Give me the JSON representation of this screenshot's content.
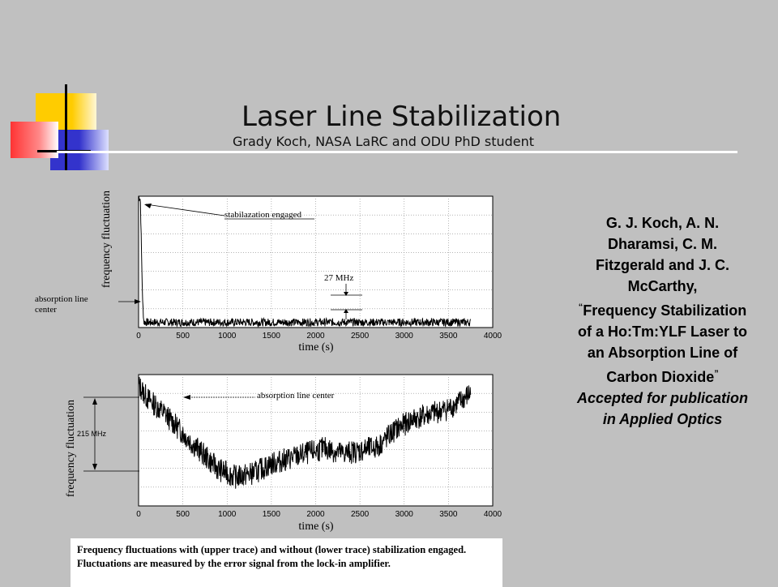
{
  "slide": {
    "title": "Laser Line Stabilization",
    "subtitle": "Grady Koch, NASA LaRC and ODU PhD student",
    "colors": {
      "background": "#c0c0c0",
      "yellow": "#ffcc00",
      "red": "#ff3333",
      "blue": "#3333cc"
    }
  },
  "reference": {
    "authors": "G. J. Koch, A. N. Dharamsi, C. M. Fitzgerald and J. C. McCarthy,",
    "quote_open": "“",
    "paper_title": "Frequency Stabilization of a Ho:Tm:YLF Laser to an Absorption Line of Carbon Dioxide",
    "quote_close": "”",
    "status": "Accepted for publication in Applied Optics"
  },
  "caption": "Frequency fluctuations with (upper trace) and without (lower trace) stabilization engaged. Fluctuations are measured by the error signal from the lock-in amplifier.",
  "chart_data": [
    {
      "type": "line",
      "xlabel": "time (s)",
      "ylabel": "frequency fluctuation",
      "xlim": [
        0,
        4000
      ],
      "xticks": [
        "0",
        "500",
        "1000",
        "1500",
        "2000",
        "2500",
        "3000",
        "3500",
        "4000"
      ],
      "grid": true,
      "annotations": {
        "stabilization": "stabilazation engaged",
        "scale": "27 MHz",
        "side": "absorption line center"
      },
      "trace": {
        "description_points": [
          [
            0,
            100
          ],
          [
            20,
            98
          ],
          [
            45,
            20
          ],
          [
            60,
            4
          ],
          [
            3750,
            4
          ]
        ],
        "noise_band": 3
      }
    },
    {
      "type": "line",
      "xlabel": "time (s)",
      "ylabel": "frequency fluctuation",
      "xlim": [
        0,
        4000
      ],
      "xticks": [
        "0",
        "500",
        "1000",
        "1500",
        "2000",
        "2500",
        "3000",
        "3500",
        "4000"
      ],
      "grid": true,
      "annotations": {
        "center": "absorption line center",
        "scale": "215 MHz"
      },
      "trace": {
        "points": [
          [
            0,
            92
          ],
          [
            100,
            82
          ],
          [
            300,
            70
          ],
          [
            600,
            48
          ],
          [
            900,
            28
          ],
          [
            1100,
            22
          ],
          [
            1300,
            25
          ],
          [
            1500,
            32
          ],
          [
            1700,
            36
          ],
          [
            1900,
            40
          ],
          [
            2100,
            44
          ],
          [
            2300,
            40
          ],
          [
            2500,
            42
          ],
          [
            2700,
            45
          ],
          [
            2900,
            58
          ],
          [
            3100,
            66
          ],
          [
            3300,
            70
          ],
          [
            3500,
            74
          ],
          [
            3650,
            80
          ],
          [
            3750,
            86
          ]
        ],
        "noise_band": 9
      }
    }
  ]
}
